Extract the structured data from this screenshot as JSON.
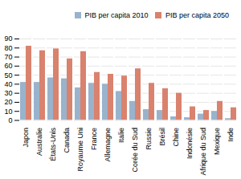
{
  "chart_data": {
    "type": "bar",
    "categories": [
      "Japon",
      "Australie",
      "États-Unis",
      "Canada",
      "Royaume Uni",
      "France",
      "Allemagne",
      "Italie",
      "Corée du Sud",
      "Russie",
      "Brésil",
      "Chine",
      "Indonésie",
      "Afrique du Sud",
      "Mexique",
      "Inde"
    ],
    "series": [
      {
        "name": "PIB per capita 2010",
        "color": "#9ab3cc",
        "values": [
          42,
          42,
          47,
          46,
          36,
          41,
          40,
          32,
          21,
          12,
          11,
          4,
          3,
          7,
          10,
          2
        ]
      },
      {
        "name": "PIB per capita 2050",
        "color": "#d9826e",
        "values": [
          82,
          77,
          79,
          68,
          76,
          53,
          51,
          49,
          57,
          41,
          35,
          30,
          15,
          11,
          21,
          14
        ]
      }
    ],
    "ylim": [
      0,
      90
    ],
    "yticks": [
      0,
      10,
      20,
      30,
      40,
      50,
      60,
      70,
      80,
      90
    ],
    "grid": true,
    "legend": "upper right"
  }
}
